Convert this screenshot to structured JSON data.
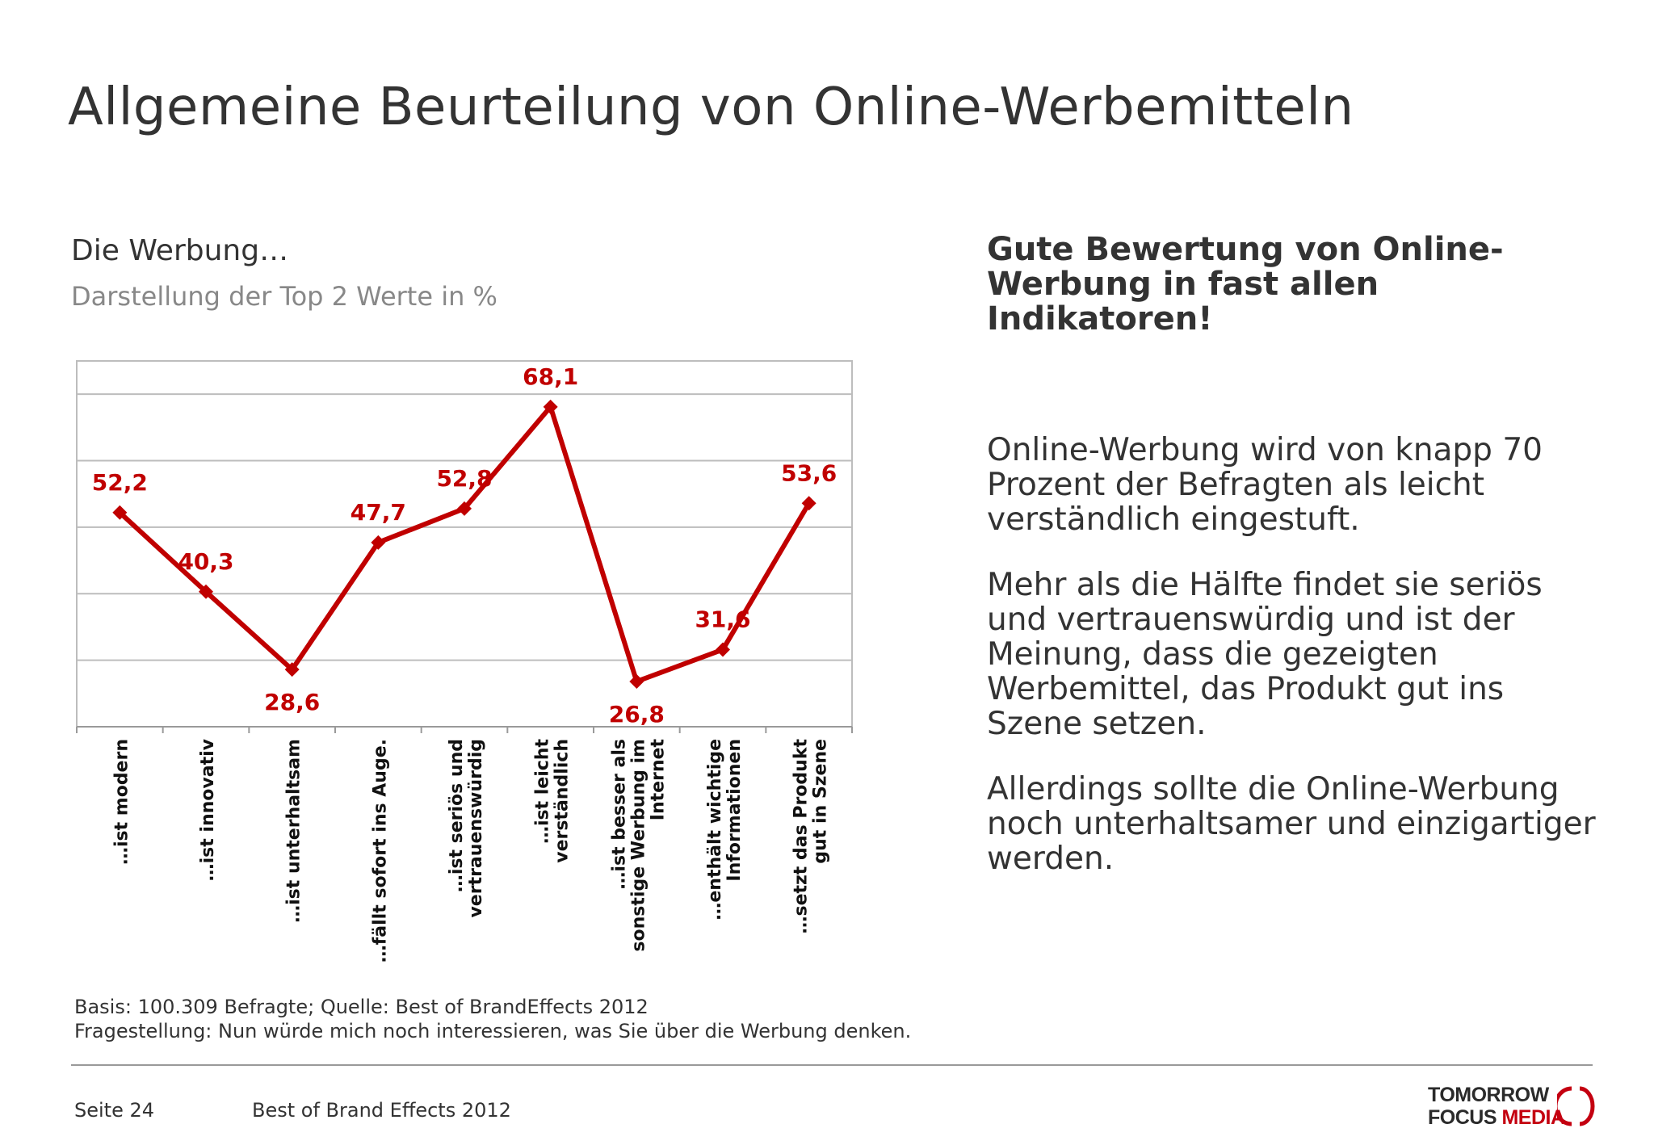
{
  "page": {
    "title": "Allgemeine Beurteilung von Online-Werbemitteln",
    "subtitle": "Die Werbung…",
    "caption": "Darstellung der Top 2 Werte in %"
  },
  "chart_data": {
    "type": "line",
    "categories": [
      "…ist modern",
      "…ist innovativ",
      "…ist unterhaltsam",
      "…fällt sofort ins Auge.",
      "…ist seriös und vertrauenswürdig",
      "…ist leicht verständlich",
      "…ist besser als sonstige Werbung im Internet",
      "…enthält wichtige Informationen",
      "…setzt das Produkt gut in Szene"
    ],
    "category_lines": [
      [
        "…ist modern"
      ],
      [
        "…ist innovativ"
      ],
      [
        "…ist unterhaltsam"
      ],
      [
        "…fällt sofort ins Auge."
      ],
      [
        "…ist seriös und",
        "vertrauenswürdig"
      ],
      [
        "…ist leicht",
        "verständlich"
      ],
      [
        "…ist besser als",
        "sonstige Werbung im",
        "Internet"
      ],
      [
        "…enthält wichtige",
        "Informationen"
      ],
      [
        "…setzt das Produkt",
        "gut in Szene"
      ]
    ],
    "series": [
      {
        "values": [
          52.2,
          40.3,
          28.6,
          47.7,
          52.8,
          68.1,
          26.8,
          31.6,
          53.6
        ],
        "labels": [
          "52,2",
          "40,3",
          "28,6",
          "47,7",
          "52,8",
          "68,1",
          "26,8",
          "31,6",
          "53,6"
        ]
      }
    ],
    "ylim": [
      20,
      75
    ],
    "gridlines": [
      30,
      40,
      50,
      60,
      70
    ],
    "grid": true,
    "legend": "none",
    "series_color": "#c00000"
  },
  "sidebar": {
    "headline": "Gute Bewertung von Online-Werbung in fast allen Indikatoren!",
    "paragraphs": [
      "Online-Werbung wird von knapp 70 Prozent der Befragten als leicht verständlich eingestuft.",
      "Mehr als die Hälfte findet sie seriös und vertrauenswürdig und ist der Meinung, dass die gezeigten Werbemittel, das Produkt gut ins Szene setzen.",
      "Allerdings sollte die Online-Werbung noch unterhaltsamer und einzigartiger werden."
    ]
  },
  "notes": {
    "basis": "Basis: 100.309 Befragte;  Quelle: Best of BrandEffects 2012",
    "question": "Fragestellung: Nun würde mich noch interessieren, was Sie über die Werbung denken."
  },
  "footer": {
    "page": "Seite 24",
    "report": "Best of Brand Effects 2012",
    "logo_line1": "TOMORROW",
    "logo_focus": "FOCUS",
    "logo_media": "MEDIA"
  }
}
